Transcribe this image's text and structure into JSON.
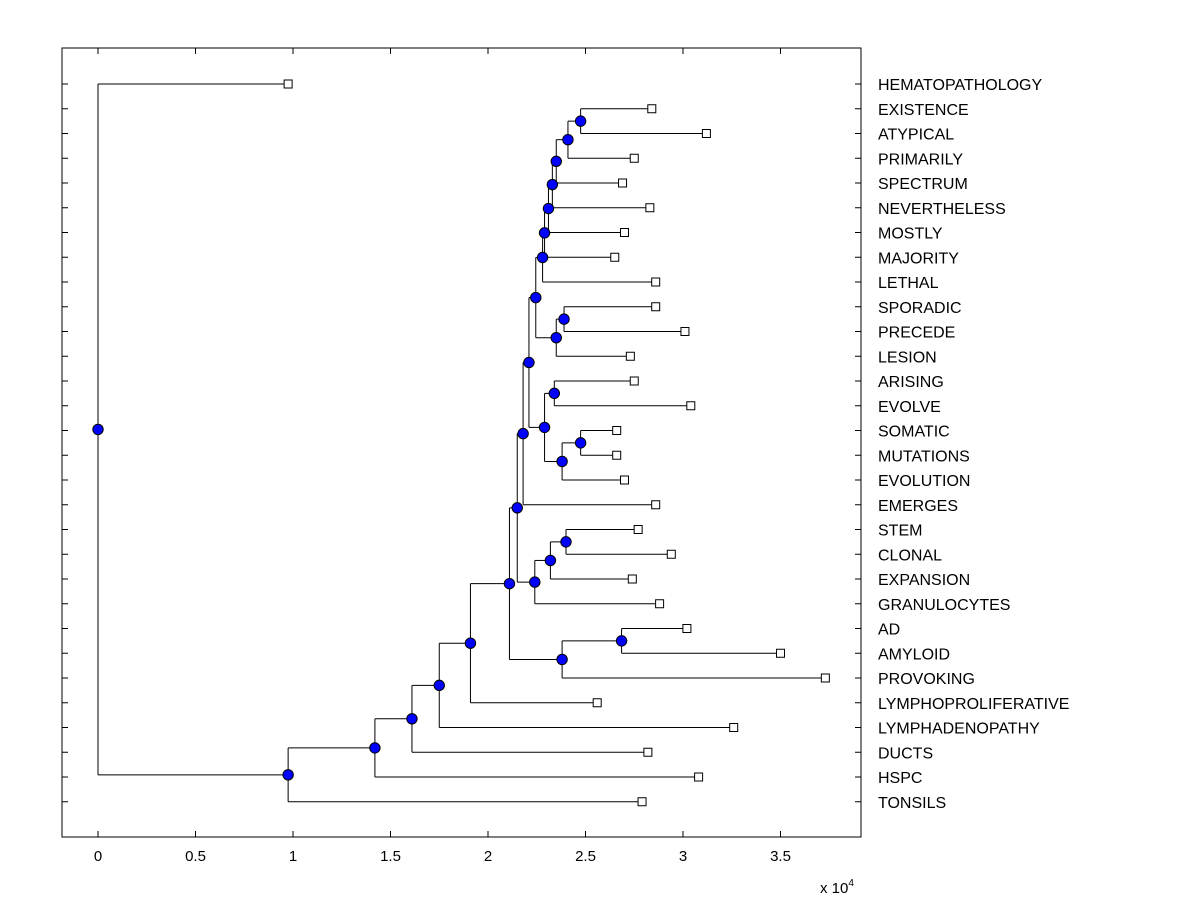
{
  "chart_data": {
    "type": "dendrogram",
    "title": "",
    "xlabel": "",
    "ylabel": "",
    "x_exponent_label": "x 10",
    "x_exponent_power": "4",
    "xlim": [
      -0.18,
      3.9
    ],
    "x_ticks": [
      0,
      0.5,
      1,
      1.5,
      2,
      2.5,
      3,
      3.5
    ],
    "x_tick_labels": [
      "0",
      "0.5",
      "1",
      "1.5",
      "2",
      "2.5",
      "3",
      "3.5"
    ],
    "grid": false,
    "colors": {
      "node_fill": "#0000ff",
      "line": "#000000",
      "leaf_fill": "#ffffff"
    },
    "leaves": [
      {
        "label": "HEMATOPATHOLOGY",
        "x": 0.975
      },
      {
        "label": "EXISTENCE",
        "x": 2.84
      },
      {
        "label": "ATYPICAL",
        "x": 3.12
      },
      {
        "label": "PRIMARILY",
        "x": 2.75
      },
      {
        "label": "SPECTRUM",
        "x": 2.69
      },
      {
        "label": "NEVERTHELESS",
        "x": 2.83
      },
      {
        "label": "MOSTLY",
        "x": 2.7
      },
      {
        "label": "MAJORITY",
        "x": 2.65
      },
      {
        "label": "LETHAL",
        "x": 2.86
      },
      {
        "label": "SPORADIC",
        "x": 2.86
      },
      {
        "label": "PRECEDE",
        "x": 3.01
      },
      {
        "label": "LESION",
        "x": 2.73
      },
      {
        "label": "ARISING",
        "x": 2.75
      },
      {
        "label": "EVOLVE",
        "x": 3.04
      },
      {
        "label": "SOMATIC",
        "x": 2.66
      },
      {
        "label": "MUTATIONS",
        "x": 2.66
      },
      {
        "label": "EVOLUTION",
        "x": 2.7
      },
      {
        "label": "EMERGES",
        "x": 2.86
      },
      {
        "label": "STEM",
        "x": 2.77
      },
      {
        "label": "CLONAL",
        "x": 2.94
      },
      {
        "label": "EXPANSION",
        "x": 2.74
      },
      {
        "label": "GRANULOCYTES",
        "x": 2.88
      },
      {
        "label": "AD",
        "x": 3.02
      },
      {
        "label": "AMYLOID",
        "x": 3.5
      },
      {
        "label": "PROVOKING",
        "x": 3.73
      },
      {
        "label": "LYMPHOPROLIFERATIVE",
        "x": 2.56
      },
      {
        "label": "LYMPHADENOPATHY",
        "x": 3.26
      },
      {
        "label": "DUCTS",
        "x": 2.82
      },
      {
        "label": "HSPC",
        "x": 3.08
      },
      {
        "label": "TONSILS",
        "x": 2.79
      }
    ],
    "internal_nodes": [
      {
        "id": "n1",
        "x": 2.475,
        "children": [
          1,
          2
        ]
      },
      {
        "id": "n2",
        "x": 2.41,
        "children": [
          "n1",
          3
        ]
      },
      {
        "id": "n3",
        "x": 2.35,
        "children": [
          "n2",
          4
        ]
      },
      {
        "id": "n4",
        "x": 2.33,
        "children": [
          "n3",
          5
        ]
      },
      {
        "id": "n5",
        "x": 2.31,
        "children": [
          "n4",
          6
        ]
      },
      {
        "id": "n6",
        "x": 2.29,
        "children": [
          "n5",
          7
        ]
      },
      {
        "id": "n7",
        "x": 2.28,
        "children": [
          "n6",
          8
        ]
      },
      {
        "id": "n8",
        "x": 2.39,
        "children": [
          9,
          10
        ]
      },
      {
        "id": "n9",
        "x": 2.35,
        "children": [
          "n8",
          11
        ]
      },
      {
        "id": "n10",
        "x": 2.245,
        "children": [
          "n7",
          "n9"
        ]
      },
      {
        "id": "n11",
        "x": 2.34,
        "children": [
          12,
          13
        ]
      },
      {
        "id": "n12",
        "x": 2.475,
        "children": [
          14,
          15
        ]
      },
      {
        "id": "n13",
        "x": 2.38,
        "children": [
          "n12",
          16
        ]
      },
      {
        "id": "n14",
        "x": 2.29,
        "children": [
          "n11",
          "n13"
        ]
      },
      {
        "id": "n15",
        "x": 2.21,
        "children": [
          "n10",
          "n14"
        ]
      },
      {
        "id": "n16",
        "x": 2.18,
        "children": [
          "n15",
          17
        ]
      },
      {
        "id": "n17",
        "x": 2.4,
        "children": [
          18,
          19
        ]
      },
      {
        "id": "n18",
        "x": 2.32,
        "children": [
          "n17",
          20
        ]
      },
      {
        "id": "n19",
        "x": 2.24,
        "children": [
          "n18",
          21
        ]
      },
      {
        "id": "n20",
        "x": 2.15,
        "children": [
          "n16",
          "n19"
        ]
      },
      {
        "id": "n21",
        "x": 2.685,
        "children": [
          22,
          23
        ]
      },
      {
        "id": "n22",
        "x": 2.38,
        "children": [
          "n21",
          24
        ]
      },
      {
        "id": "n23",
        "x": 2.11,
        "children": [
          "n20",
          "n22"
        ]
      },
      {
        "id": "n24",
        "x": 1.91,
        "children": [
          "n23",
          25
        ]
      },
      {
        "id": "n25",
        "x": 1.75,
        "children": [
          "n24",
          26
        ]
      },
      {
        "id": "n26",
        "x": 1.61,
        "children": [
          "n25",
          27
        ]
      },
      {
        "id": "n27",
        "x": 1.42,
        "children": [
          "n26",
          28
        ]
      },
      {
        "id": "n28",
        "x": 0.975,
        "children": [
          "n27",
          29
        ]
      },
      {
        "id": "n29",
        "x": 0.0,
        "children": [
          0,
          "n28"
        ]
      }
    ]
  }
}
